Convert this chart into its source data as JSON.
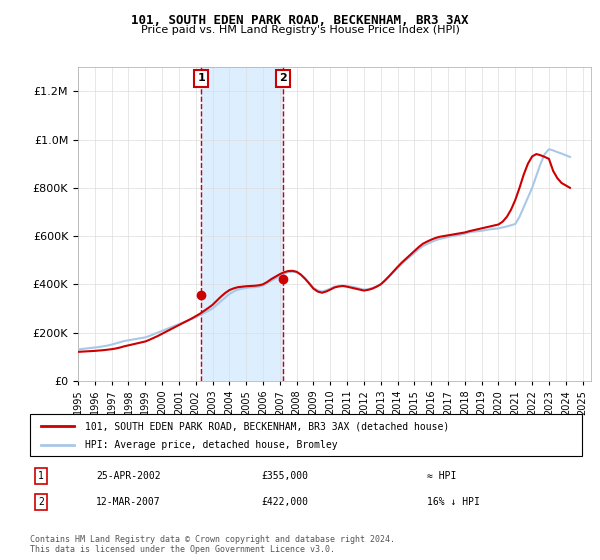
{
  "title": "101, SOUTH EDEN PARK ROAD, BECKENHAM, BR3 3AX",
  "subtitle": "Price paid vs. HM Land Registry's House Price Index (HPI)",
  "legend_line1": "101, SOUTH EDEN PARK ROAD, BECKENHAM, BR3 3AX (detached house)",
  "legend_line2": "HPI: Average price, detached house, Bromley",
  "footnote": "Contains HM Land Registry data © Crown copyright and database right 2024.\nThis data is licensed under the Open Government Licence v3.0.",
  "annotation1_label": "1",
  "annotation1_date": "25-APR-2002",
  "annotation1_price": "£355,000",
  "annotation1_hpi": "≈ HPI",
  "annotation2_label": "2",
  "annotation2_date": "12-MAR-2007",
  "annotation2_price": "£422,000",
  "annotation2_hpi": "16% ↓ HPI",
  "sale1_year": 2002.32,
  "sale1_price": 355000,
  "sale2_year": 2007.2,
  "sale2_price": 422000,
  "hpi_color": "#a8c8e8",
  "price_color": "#cc0000",
  "shaded_color": "#ddeeff",
  "ylim_min": 0,
  "ylim_max": 1300000,
  "xlim_min": 1995,
  "xlim_max": 2025.5,
  "hpi_years": [
    1995,
    1995.25,
    1995.5,
    1995.75,
    1996,
    1996.25,
    1996.5,
    1996.75,
    1997,
    1997.25,
    1997.5,
    1997.75,
    1998,
    1998.25,
    1998.5,
    1998.75,
    1999,
    1999.25,
    1999.5,
    1999.75,
    2000,
    2000.25,
    2000.5,
    2000.75,
    2001,
    2001.25,
    2001.5,
    2001.75,
    2002,
    2002.25,
    2002.5,
    2002.75,
    2003,
    2003.25,
    2003.5,
    2003.75,
    2004,
    2004.25,
    2004.5,
    2004.75,
    2005,
    2005.25,
    2005.5,
    2005.75,
    2006,
    2006.25,
    2006.5,
    2006.75,
    2007,
    2007.25,
    2007.5,
    2007.75,
    2008,
    2008.25,
    2008.5,
    2008.75,
    2009,
    2009.25,
    2009.5,
    2009.75,
    2010,
    2010.25,
    2010.5,
    2010.75,
    2011,
    2011.25,
    2011.5,
    2011.75,
    2012,
    2012.25,
    2012.5,
    2012.75,
    2013,
    2013.25,
    2013.5,
    2013.75,
    2014,
    2014.25,
    2014.5,
    2014.75,
    2015,
    2015.25,
    2015.5,
    2015.75,
    2016,
    2016.25,
    2016.5,
    2016.75,
    2017,
    2017.25,
    2017.5,
    2017.75,
    2018,
    2018.25,
    2018.5,
    2018.75,
    2019,
    2019.25,
    2019.5,
    2019.75,
    2020,
    2020.25,
    2020.5,
    2020.75,
    2021,
    2021.25,
    2021.5,
    2021.75,
    2022,
    2022.25,
    2022.5,
    2022.75,
    2023,
    2023.25,
    2023.5,
    2023.75,
    2024,
    2024.25
  ],
  "hpi_values": [
    130000,
    132000,
    134000,
    136000,
    138000,
    140000,
    143000,
    146000,
    150000,
    155000,
    160000,
    165000,
    168000,
    171000,
    174000,
    177000,
    180000,
    186000,
    193000,
    200000,
    207000,
    214000,
    221000,
    228000,
    235000,
    242000,
    249000,
    256000,
    263000,
    272000,
    281000,
    290000,
    300000,
    315000,
    330000,
    345000,
    360000,
    370000,
    378000,
    382000,
    385000,
    387000,
    388000,
    390000,
    395000,
    405000,
    415000,
    425000,
    435000,
    445000,
    450000,
    452000,
    450000,
    440000,
    425000,
    405000,
    385000,
    375000,
    370000,
    375000,
    382000,
    390000,
    393000,
    395000,
    393000,
    390000,
    387000,
    382000,
    378000,
    380000,
    385000,
    392000,
    400000,
    415000,
    432000,
    450000,
    468000,
    485000,
    500000,
    515000,
    530000,
    545000,
    558000,
    567000,
    575000,
    582000,
    588000,
    592000,
    596000,
    600000,
    603000,
    606000,
    610000,
    615000,
    618000,
    620000,
    622000,
    625000,
    628000,
    630000,
    632000,
    636000,
    640000,
    645000,
    650000,
    680000,
    720000,
    760000,
    800000,
    850000,
    900000,
    940000,
    960000,
    955000,
    948000,
    942000,
    935000,
    928000
  ],
  "price_years": [
    1995,
    1995.25,
    1995.5,
    1995.75,
    1996,
    1996.25,
    1996.5,
    1996.75,
    1997,
    1997.25,
    1997.5,
    1997.75,
    1998,
    1998.25,
    1998.5,
    1998.75,
    1999,
    1999.25,
    1999.5,
    1999.75,
    2000,
    2000.25,
    2000.5,
    2000.75,
    2001,
    2001.25,
    2001.5,
    2001.75,
    2002,
    2002.25,
    2002.5,
    2002.75,
    2003,
    2003.25,
    2003.5,
    2003.75,
    2004,
    2004.25,
    2004.5,
    2004.75,
    2005,
    2005.25,
    2005.5,
    2005.75,
    2006,
    2006.25,
    2006.5,
    2006.75,
    2007,
    2007.25,
    2007.5,
    2007.75,
    2008,
    2008.25,
    2008.5,
    2008.75,
    2009,
    2009.25,
    2009.5,
    2009.75,
    2010,
    2010.25,
    2010.5,
    2010.75,
    2011,
    2011.25,
    2011.5,
    2011.75,
    2012,
    2012.25,
    2012.5,
    2012.75,
    2013,
    2013.25,
    2013.5,
    2013.75,
    2014,
    2014.25,
    2014.5,
    2014.75,
    2015,
    2015.25,
    2015.5,
    2015.75,
    2016,
    2016.25,
    2016.5,
    2016.75,
    2017,
    2017.25,
    2017.5,
    2017.75,
    2018,
    2018.25,
    2018.5,
    2018.75,
    2019,
    2019.25,
    2019.5,
    2019.75,
    2020,
    2020.25,
    2020.5,
    2020.75,
    2021,
    2021.25,
    2021.5,
    2021.75,
    2022,
    2022.25,
    2022.5,
    2022.75,
    2023,
    2023.25,
    2023.5,
    2023.75,
    2024,
    2024.25
  ],
  "price_values": [
    120000,
    121000,
    122000,
    123000,
    124000,
    125500,
    127000,
    129000,
    131000,
    134000,
    138000,
    143000,
    147000,
    151000,
    155000,
    159000,
    163000,
    170000,
    178000,
    186000,
    195000,
    204000,
    213000,
    222000,
    231000,
    240000,
    249000,
    258000,
    268000,
    278000,
    290000,
    302000,
    315000,
    332000,
    349000,
    364000,
    376000,
    383000,
    388000,
    390000,
    392000,
    393000,
    394000,
    396000,
    400000,
    410000,
    422000,
    432000,
    442000,
    450000,
    455000,
    456000,
    452000,
    440000,
    423000,
    403000,
    382000,
    370000,
    365000,
    370000,
    378000,
    387000,
    391000,
    393000,
    390000,
    386000,
    382000,
    378000,
    374000,
    377000,
    382000,
    390000,
    400000,
    416000,
    434000,
    453000,
    472000,
    490000,
    506000,
    522000,
    538000,
    554000,
    568000,
    577000,
    585000,
    592000,
    597000,
    600000,
    603000,
    606000,
    609000,
    612000,
    615000,
    620000,
    624000,
    628000,
    632000,
    636000,
    640000,
    644000,
    648000,
    660000,
    680000,
    710000,
    750000,
    800000,
    855000,
    900000,
    930000,
    940000,
    935000,
    928000,
    920000,
    870000,
    840000,
    820000,
    810000,
    800000
  ]
}
